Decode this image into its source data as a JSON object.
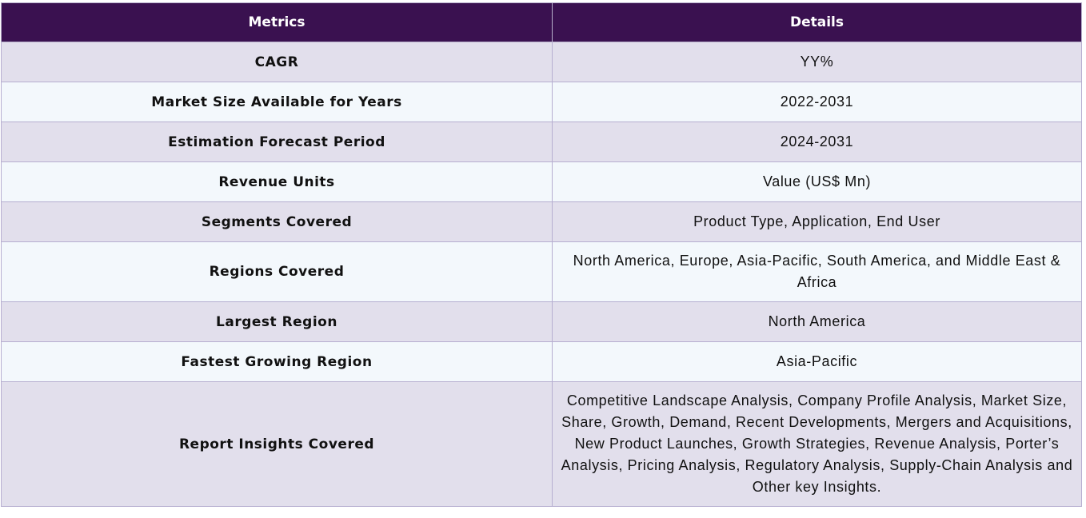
{
  "table": {
    "headers": {
      "metrics": "Metrics",
      "details": "Details"
    },
    "rows": [
      {
        "metric": "CAGR",
        "detail": "YY%"
      },
      {
        "metric": "Market Size Available for Years",
        "detail": "2022-2031"
      },
      {
        "metric": "Estimation Forecast Period",
        "detail": "2024-2031"
      },
      {
        "metric": "Revenue Units",
        "detail": "Value (US$ Mn)"
      },
      {
        "metric": "Segments Covered",
        "detail": "Product Type, Application, End User"
      },
      {
        "metric": "Regions Covered",
        "detail": "North America, Europe, Asia-Pacific, South America, and Middle East & Africa"
      },
      {
        "metric": "Largest Region",
        "detail": "North America"
      },
      {
        "metric": "Fastest Growing Region",
        "detail": "Asia-Pacific"
      },
      {
        "metric": "Report Insights Covered",
        "detail": "Competitive Landscape Analysis, Company Profile Analysis, Market Size, Share, Growth, Demand, Recent Developments, Mergers and Acquisitions, New Product Launches, Growth Strategies, Revenue Analysis, Porter’s Analysis, Pricing Analysis, Regulatory Analysis, Supply-Chain Analysis and Other key Insights."
      }
    ]
  },
  "colors": {
    "header_bg": "#3a1150",
    "header_text": "#ffffff",
    "row_odd_bg": "#e2dfec",
    "row_even_bg": "#f3f8fc",
    "border": "#b6aed0"
  }
}
